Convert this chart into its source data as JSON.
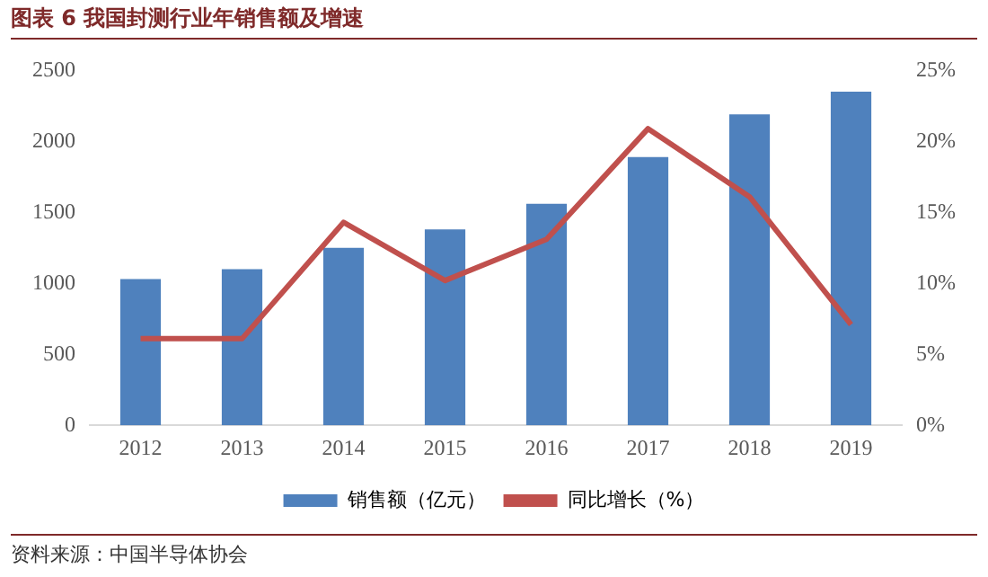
{
  "chart_data": {
    "type": "bar",
    "title": "图表 6  我国封测行业年销售额及增速",
    "categories": [
      "2012",
      "2013",
      "2014",
      "2015",
      "2016",
      "2017",
      "2018",
      "2019"
    ],
    "series": [
      {
        "name": "销售额（亿元）",
        "color": "#4f81bd",
        "values": [
          1030,
          1100,
          1250,
          1380,
          1560,
          1890,
          2190,
          2350
        ]
      },
      {
        "name": "同比增长（%）",
        "type": "line",
        "axis": "y2",
        "color": "#c0504d",
        "values": [
          6.1,
          6.1,
          14.3,
          10.2,
          13.1,
          20.9,
          16.1,
          7.1
        ]
      }
    ],
    "ylim": [
      0,
      2500
    ],
    "yticks": [
      0,
      500,
      1000,
      1500,
      2000,
      2500
    ],
    "y2lim": [
      0,
      25
    ],
    "y2ticks": [
      {
        "value": 0,
        "label": "0%"
      },
      {
        "value": 5,
        "label": "5%"
      },
      {
        "value": 10,
        "label": "10%"
      },
      {
        "value": 15,
        "label": "15%"
      },
      {
        "value": 20,
        "label": "20%"
      },
      {
        "value": 25,
        "label": "25%"
      }
    ],
    "grid": false,
    "legend": "bottom",
    "marker": "none",
    "annotations": [
      "资料来源：中国半导体协会"
    ]
  }
}
